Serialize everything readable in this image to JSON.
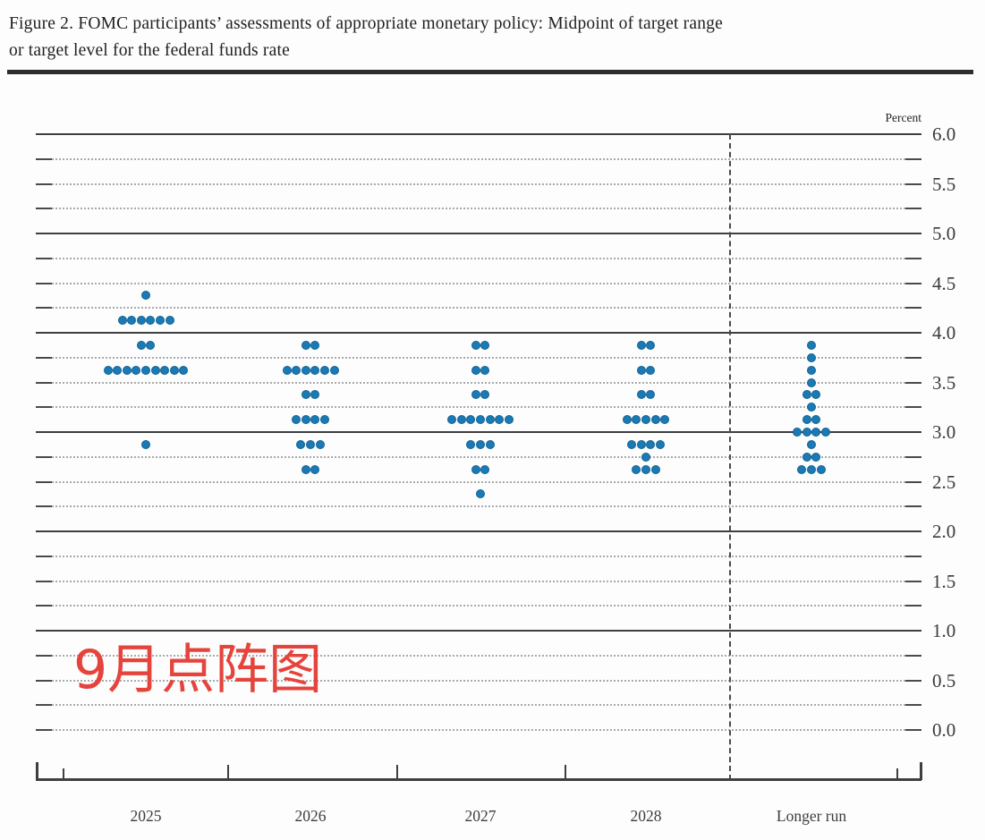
{
  "figure": {
    "title_line1": "Figure 2. FOMC participants’ assessments of appropriate monetary policy: Midpoint of target range",
    "title_line2": "or target level for the federal funds rate"
  },
  "annotation": {
    "text": "9月点阵图",
    "color": "#e5443c"
  },
  "chart_data": {
    "type": "scatter",
    "subtype": "fomc-dot-plot",
    "unit_label": "Percent",
    "ylabel": "Percent",
    "ylim": [
      0.0,
      6.0
    ],
    "ytick_step": 0.5,
    "grid_step": 0.25,
    "grid_on": true,
    "solid_gridlines_at": [
      1.0,
      2.0,
      3.0,
      4.0,
      5.0,
      6.0
    ],
    "ytick_labels": [
      "6.0",
      "5.5",
      "5.0",
      "4.5",
      "4.0",
      "3.5",
      "3.0",
      "2.5",
      "2.0",
      "1.5",
      "1.0",
      "0.5",
      "0.0"
    ],
    "categories": [
      "2025",
      "2026",
      "2027",
      "2028",
      "Longer run"
    ],
    "separator_before_category": "Longer run",
    "dot_color": "#1b7ab5",
    "series": [
      {
        "category": "2025",
        "dots": [
          {
            "rate": 4.375,
            "count": 1
          },
          {
            "rate": 4.125,
            "count": 6
          },
          {
            "rate": 3.875,
            "count": 2
          },
          {
            "rate": 3.625,
            "count": 9
          },
          {
            "rate": 2.875,
            "count": 1
          }
        ]
      },
      {
        "category": "2026",
        "dots": [
          {
            "rate": 3.875,
            "count": 2
          },
          {
            "rate": 3.625,
            "count": 6
          },
          {
            "rate": 3.375,
            "count": 2
          },
          {
            "rate": 3.125,
            "count": 4
          },
          {
            "rate": 2.875,
            "count": 3
          },
          {
            "rate": 2.625,
            "count": 2
          }
        ]
      },
      {
        "category": "2027",
        "dots": [
          {
            "rate": 3.875,
            "count": 2
          },
          {
            "rate": 3.625,
            "count": 2
          },
          {
            "rate": 3.375,
            "count": 2
          },
          {
            "rate": 3.125,
            "count": 7
          },
          {
            "rate": 2.875,
            "count": 3
          },
          {
            "rate": 2.625,
            "count": 2
          },
          {
            "rate": 2.375,
            "count": 1
          }
        ]
      },
      {
        "category": "2028",
        "dots": [
          {
            "rate": 3.875,
            "count": 2
          },
          {
            "rate": 3.625,
            "count": 2
          },
          {
            "rate": 3.375,
            "count": 2
          },
          {
            "rate": 3.125,
            "count": 5
          },
          {
            "rate": 2.875,
            "count": 4
          },
          {
            "rate": 2.75,
            "count": 1
          },
          {
            "rate": 2.625,
            "count": 3
          }
        ]
      },
      {
        "category": "Longer run",
        "dots": [
          {
            "rate": 3.875,
            "count": 1
          },
          {
            "rate": 3.75,
            "count": 1
          },
          {
            "rate": 3.625,
            "count": 1
          },
          {
            "rate": 3.5,
            "count": 1
          },
          {
            "rate": 3.375,
            "count": 2
          },
          {
            "rate": 3.25,
            "count": 1
          },
          {
            "rate": 3.125,
            "count": 2
          },
          {
            "rate": 3.0,
            "count": 4
          },
          {
            "rate": 2.875,
            "count": 1
          },
          {
            "rate": 2.75,
            "count": 2
          },
          {
            "rate": 2.625,
            "count": 3
          }
        ]
      }
    ]
  }
}
